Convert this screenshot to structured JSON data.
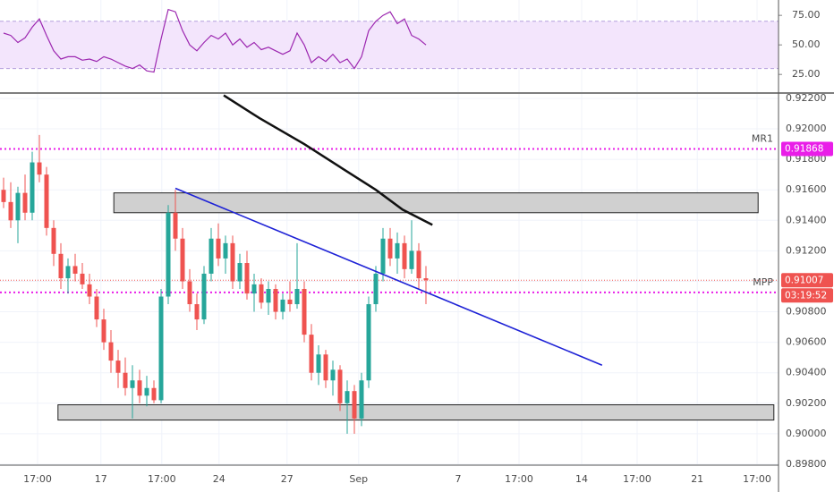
{
  "chart_data": [
    {
      "type": "line",
      "name": "RSI",
      "color": "#9c27b0",
      "band": [
        30,
        70
      ],
      "band_color": "#f3e5fc",
      "ylim": [
        10,
        88
      ],
      "yticks": [
        {
          "value": 25,
          "label": "25.00"
        },
        {
          "value": 50,
          "label": "50.00"
        },
        {
          "value": 75,
          "label": "75.00"
        }
      ],
      "values": [
        60,
        58,
        52,
        56,
        65,
        72,
        58,
        45,
        38,
        40,
        40,
        37,
        38,
        36,
        40,
        38,
        35,
        32,
        30,
        33,
        28,
        27,
        55,
        80,
        78,
        62,
        50,
        45,
        52,
        58,
        55,
        60,
        50,
        55,
        48,
        52,
        46,
        48,
        45,
        42,
        45,
        60,
        50,
        35,
        40,
        36,
        42,
        35,
        38,
        30,
        40,
        62,
        70,
        75,
        78,
        68,
        72,
        58,
        55,
        50
      ]
    },
    {
      "type": "candlestick",
      "up_color": "#26a69a",
      "down_color": "#ef5350",
      "xlim": [
        -0.5,
        108.25
      ],
      "ylim": [
        0.89794,
        0.92235
      ],
      "xticks": [
        {
          "value": 4.75,
          "label": "17:00"
        },
        {
          "value": 13.6,
          "label": "17"
        },
        {
          "value": 22.1,
          "label": "17:00"
        },
        {
          "value": 30.1,
          "label": "24"
        },
        {
          "value": 39.6,
          "label": "27"
        },
        {
          "value": 49.6,
          "label": "Sep"
        },
        {
          "value": 63.5,
          "label": "7"
        },
        {
          "value": 72,
          "label": "17:00"
        },
        {
          "value": 80.75,
          "label": "14"
        },
        {
          "value": 88.5,
          "label": "17:00"
        },
        {
          "value": 96.9,
          "label": "21"
        },
        {
          "value": 105.25,
          "label": "17:00"
        }
      ],
      "yticks": [
        {
          "value": 0.898,
          "label": "0.89800"
        },
        {
          "value": 0.9,
          "label": "0.90000"
        },
        {
          "value": 0.902,
          "label": "0.90200"
        },
        {
          "value": 0.904,
          "label": "0.90400"
        },
        {
          "value": 0.906,
          "label": "0.90600"
        },
        {
          "value": 0.908,
          "label": "0.90800"
        },
        {
          "value": 0.91,
          "label": "0.91000"
        },
        {
          "value": 0.912,
          "label": "0.91200"
        },
        {
          "value": 0.914,
          "label": "0.91400"
        },
        {
          "value": 0.916,
          "label": "0.91600"
        },
        {
          "value": 0.918,
          "label": "0.91800"
        },
        {
          "value": 0.92,
          "label": "0.92000"
        },
        {
          "value": 0.922,
          "label": "0.92200"
        }
      ],
      "open": [
        0.916,
        0.9152,
        0.914,
        0.9158,
        0.9145,
        0.9178,
        0.917,
        0.9135,
        0.9118,
        0.9102,
        0.911,
        0.9105,
        0.9098,
        0.909,
        0.9075,
        0.906,
        0.9048,
        0.904,
        0.903,
        0.9035,
        0.9025,
        0.903,
        0.9022,
        0.909,
        0.9145,
        0.9128,
        0.91,
        0.9085,
        0.9075,
        0.9105,
        0.9128,
        0.9115,
        0.9125,
        0.91,
        0.9112,
        0.9092,
        0.9098,
        0.9086,
        0.9095,
        0.908,
        0.9088,
        0.9085,
        0.9095,
        0.9065,
        0.904,
        0.9052,
        0.9035,
        0.9042,
        0.902,
        0.9028,
        0.901,
        0.9035,
        0.9085,
        0.9105,
        0.9128,
        0.9115,
        0.9125,
        0.9108,
        0.912,
        0.9102
      ],
      "high": [
        0.9168,
        0.9165,
        0.9162,
        0.917,
        0.9185,
        0.9196,
        0.9175,
        0.914,
        0.9125,
        0.9115,
        0.9118,
        0.9112,
        0.9105,
        0.9095,
        0.9082,
        0.9068,
        0.9055,
        0.905,
        0.9045,
        0.9042,
        0.9038,
        0.9035,
        0.9095,
        0.915,
        0.916,
        0.9135,
        0.9108,
        0.9092,
        0.911,
        0.9135,
        0.9138,
        0.913,
        0.913,
        0.9118,
        0.912,
        0.9105,
        0.9102,
        0.91,
        0.9098,
        0.9092,
        0.91,
        0.9125,
        0.91,
        0.9072,
        0.9058,
        0.9055,
        0.9048,
        0.9045,
        0.9035,
        0.9032,
        0.904,
        0.909,
        0.911,
        0.9135,
        0.9135,
        0.9132,
        0.913,
        0.914,
        0.9125,
        0.911
      ],
      "low": [
        0.9148,
        0.9135,
        0.9125,
        0.914,
        0.914,
        0.9165,
        0.913,
        0.911,
        0.9095,
        0.9092,
        0.91,
        0.9095,
        0.9085,
        0.907,
        0.9055,
        0.904,
        0.903,
        0.9025,
        0.901,
        0.902,
        0.9018,
        0.902,
        0.902,
        0.9085,
        0.912,
        0.9095,
        0.908,
        0.9068,
        0.9072,
        0.91,
        0.911,
        0.9105,
        0.9095,
        0.9095,
        0.9088,
        0.908,
        0.9082,
        0.9078,
        0.9075,
        0.9075,
        0.908,
        0.9082,
        0.906,
        0.9035,
        0.9032,
        0.903,
        0.9025,
        0.9015,
        0.9,
        0.9,
        0.9005,
        0.903,
        0.908,
        0.91,
        0.911,
        0.9105,
        0.9102,
        0.9105,
        0.9095,
        0.9085
      ],
      "close": [
        0.9152,
        0.914,
        0.9158,
        0.9145,
        0.9178,
        0.917,
        0.9135,
        0.9118,
        0.9102,
        0.911,
        0.9105,
        0.9098,
        0.909,
        0.9075,
        0.906,
        0.9048,
        0.904,
        0.903,
        0.9035,
        0.9025,
        0.903,
        0.9022,
        0.909,
        0.9145,
        0.9128,
        0.91,
        0.9085,
        0.9075,
        0.9105,
        0.9128,
        0.9115,
        0.9125,
        0.91,
        0.9112,
        0.9092,
        0.9098,
        0.9086,
        0.9095,
        0.908,
        0.9088,
        0.9085,
        0.9095,
        0.9065,
        0.904,
        0.9052,
        0.9035,
        0.9042,
        0.902,
        0.9028,
        0.901,
        0.9035,
        0.9085,
        0.9105,
        0.9128,
        0.9115,
        0.9125,
        0.9108,
        0.912,
        0.9102,
        0.91007
      ],
      "levels": [
        {
          "name": "MR1",
          "value": 0.91868,
          "label": "0.91868",
          "color": "#e91ee8"
        },
        {
          "name": "MPP",
          "value": 0.90927,
          "color": "#e91ee8"
        }
      ],
      "last_price": {
        "value": 0.91007,
        "label": "0.91007",
        "countdown": "03:19:52",
        "color": "#ef5350"
      },
      "zones": [
        {
          "x": [
            15.4,
            105.4
          ],
          "y": [
            0.9145,
            0.9158
          ]
        },
        {
          "x": [
            7.6,
            107.6
          ],
          "y": [
            0.9009,
            0.9019
          ]
        }
      ],
      "trendline": {
        "x": [
          24,
          83.6
        ],
        "y": [
          0.9161,
          0.9045
        ],
        "color": "#1e22d6"
      },
      "curve": {
        "x": [
          30.75,
          35.75,
          42,
          47,
          52,
          55.75,
          59.9
        ],
        "y": [
          0.9222,
          0.9207,
          0.919,
          0.9175,
          0.916,
          0.9147,
          0.9137
        ],
        "color": "#111111"
      }
    }
  ]
}
